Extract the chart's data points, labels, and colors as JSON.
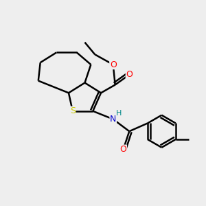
{
  "background_color": "#eeeeee",
  "atom_colors": {
    "S": "#cccc00",
    "O": "#ff0000",
    "N": "#0000cc",
    "H": "#008888",
    "C": "#000000"
  },
  "bond_color": "#000000",
  "bond_width": 1.8,
  "figsize": [
    3.0,
    3.0
  ],
  "dpi": 100
}
